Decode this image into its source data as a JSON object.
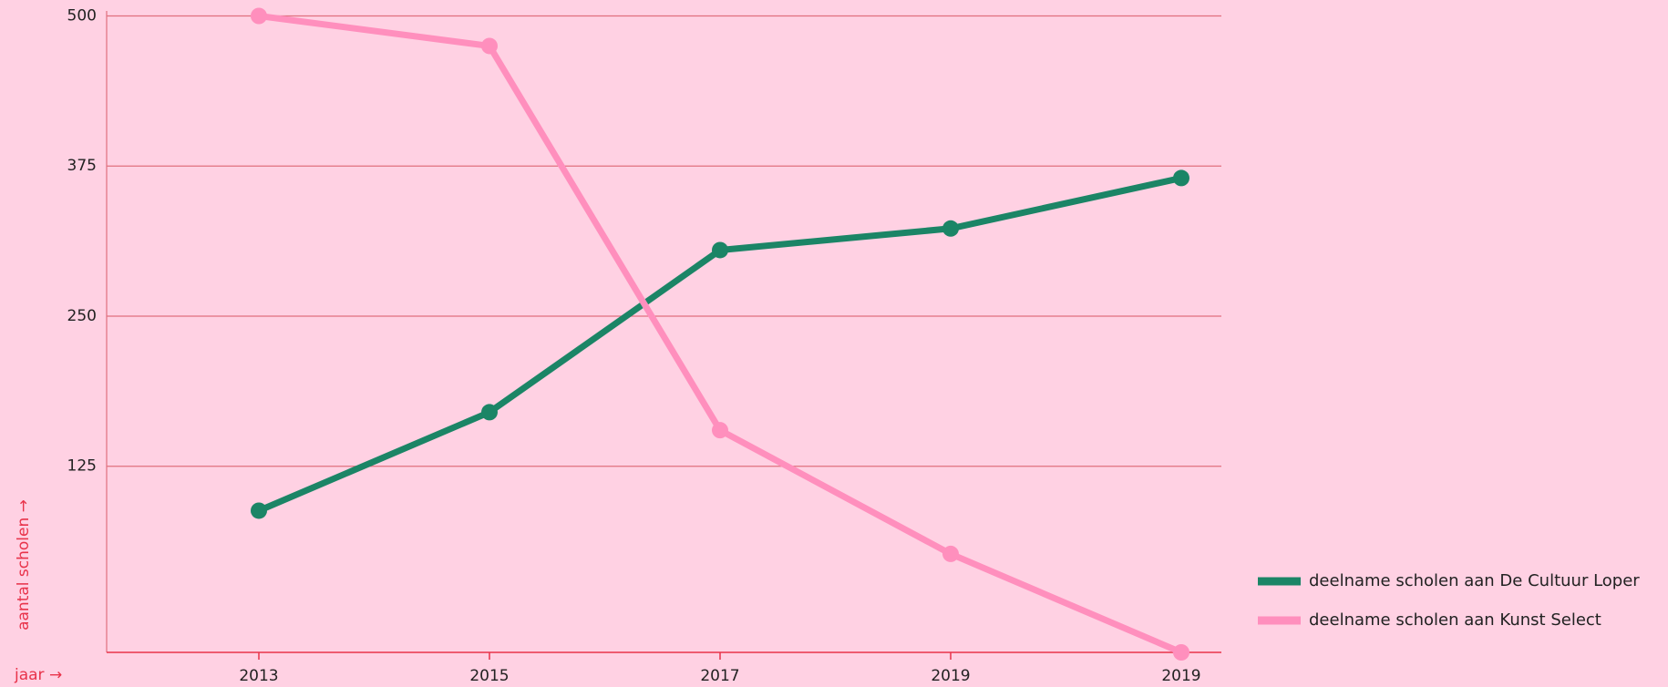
{
  "chart_data": {
    "type": "line",
    "categories": [
      "2013",
      "2015",
      "2017",
      "2019",
      "2019"
    ],
    "series": [
      {
        "name": "deelname scholen aan De Cultuur Loper",
        "color": "#1b8566",
        "values": [
          88,
          170,
          305,
          323,
          365
        ]
      },
      {
        "name": "deelname scholen aan Kunst Select",
        "color": "#ff8fbd",
        "values": [
          500,
          475,
          155,
          52,
          -30
        ]
      }
    ],
    "ylim": [
      -30,
      500
    ],
    "yticks": [
      125,
      250,
      375,
      500
    ],
    "grid": true,
    "y_label": "aantal scholen →",
    "x_label": "jaar →",
    "legend": "right"
  }
}
